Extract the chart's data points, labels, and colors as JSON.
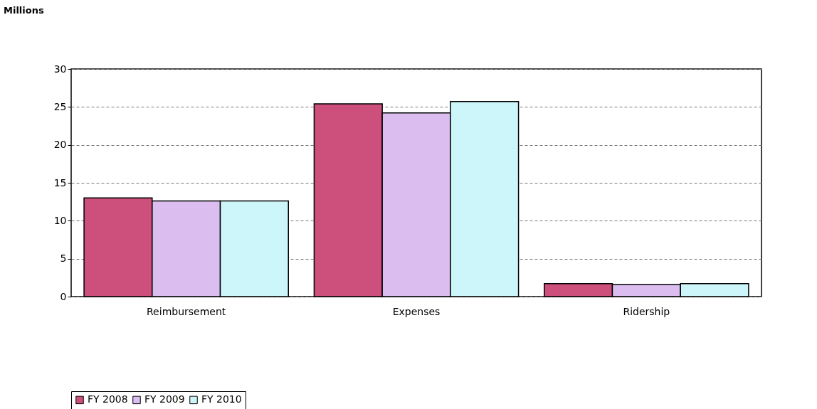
{
  "chart_data": {
    "type": "bar",
    "title": "Millions",
    "categories": [
      "Reimbursement",
      "Expenses",
      "Ridership"
    ],
    "series": [
      {
        "name": "FY 2008",
        "color": "#cc4f7c",
        "values": [
          13,
          25.4,
          1.7
        ]
      },
      {
        "name": "FY 2009",
        "color": "#dcbdf0",
        "values": [
          12.6,
          24.2,
          1.6
        ]
      },
      {
        "name": "FY 2010",
        "color": "#ccf6fa",
        "values": [
          12.6,
          25.7,
          1.7
        ]
      }
    ],
    "ylim": [
      0,
      30
    ],
    "yticks": [
      0,
      5,
      10,
      15,
      20,
      25,
      30
    ],
    "grid": "y",
    "legend": "bottom"
  }
}
